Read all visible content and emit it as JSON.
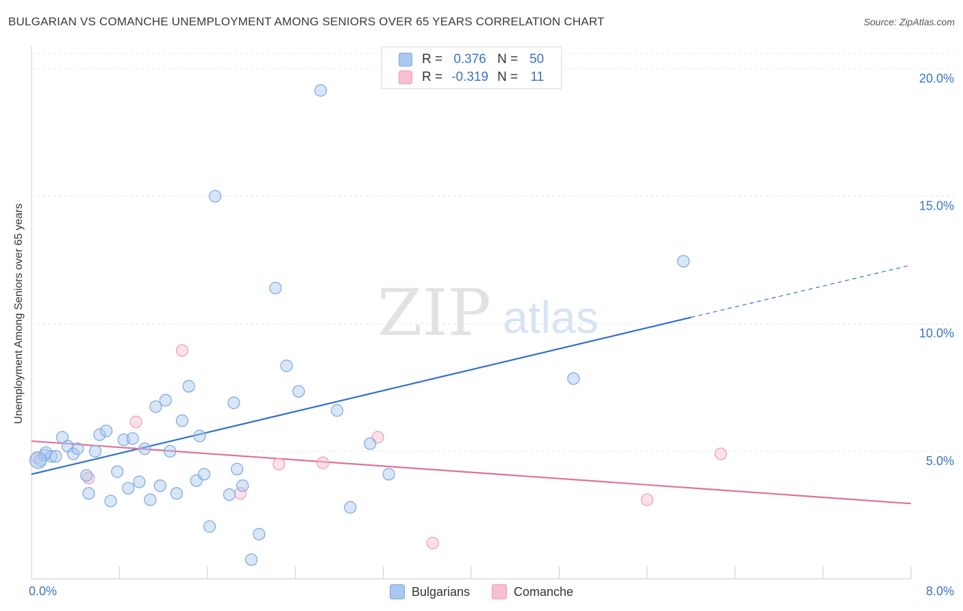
{
  "header": {
    "title": "BULGARIAN VS COMANCHE UNEMPLOYMENT AMONG SENIORS OVER 65 YEARS CORRELATION CHART",
    "source": "Source: ZipAtlas.com"
  },
  "watermark": {
    "zip": "ZIP",
    "atlas": "atlas"
  },
  "legend": {
    "rows": [
      {
        "r_label": "R =",
        "r_value": "0.376",
        "n_label": "N =",
        "n_value": "50",
        "color": "#a8c8f0",
        "border": "#7aa6e0"
      },
      {
        "r_label": "R =",
        "r_value": "-0.319",
        "n_label": "N =",
        "n_value": "11",
        "color": "#f7bfd0",
        "border": "#ee9ab5"
      }
    ]
  },
  "bottom_legend": {
    "items": [
      {
        "label": "Bulgarians",
        "color": "#a8c8f0",
        "border": "#7aa6e0"
      },
      {
        "label": "Comanche",
        "color": "#f7bfd0",
        "border": "#ee9ab5"
      }
    ]
  },
  "chart_data": {
    "type": "scatter",
    "title": "BULGARIAN VS COMANCHE UNEMPLOYMENT AMONG SENIORS OVER 65 YEARS CORRELATION CHART",
    "xlabel": "",
    "ylabel": "Unemployment Among Seniors over 65 years",
    "xlim": [
      0,
      8
    ],
    "ylim": [
      0,
      20.6
    ],
    "x_tick_labels": [
      "0.0%",
      "8.0%"
    ],
    "y_ticks": [
      5,
      10,
      15,
      20
    ],
    "y_tick_labels": [
      "5.0%",
      "10.0%",
      "15.0%",
      "20.0%"
    ],
    "grid": true,
    "series": [
      {
        "name": "Bulgarians",
        "color": "#7aa6e0",
        "fill": "rgba(168,200,240,0.45)",
        "points": [
          [
            0.08,
            4.65
          ],
          [
            0.12,
            4.85
          ],
          [
            0.18,
            4.8
          ],
          [
            0.22,
            4.8
          ],
          [
            0.28,
            5.55
          ],
          [
            0.33,
            5.2
          ],
          [
            0.38,
            4.9
          ],
          [
            0.42,
            5.1
          ],
          [
            0.5,
            4.05
          ],
          [
            0.52,
            3.35
          ],
          [
            0.58,
            5.0
          ],
          [
            0.62,
            5.65
          ],
          [
            0.68,
            5.8
          ],
          [
            0.72,
            3.05
          ],
          [
            0.78,
            4.2
          ],
          [
            0.84,
            5.45
          ],
          [
            0.88,
            3.55
          ],
          [
            0.92,
            5.5
          ],
          [
            0.98,
            3.8
          ],
          [
            1.03,
            5.1
          ],
          [
            1.08,
            3.1
          ],
          [
            1.13,
            6.75
          ],
          [
            1.17,
            3.65
          ],
          [
            1.22,
            7.0
          ],
          [
            1.26,
            5.0
          ],
          [
            1.32,
            3.35
          ],
          [
            1.37,
            6.2
          ],
          [
            1.43,
            7.55
          ],
          [
            1.5,
            3.85
          ],
          [
            1.53,
            5.6
          ],
          [
            1.57,
            4.1
          ],
          [
            1.62,
            2.05
          ],
          [
            1.67,
            15.0
          ],
          [
            1.8,
            3.3
          ],
          [
            1.84,
            6.9
          ],
          [
            1.87,
            4.3
          ],
          [
            1.92,
            3.65
          ],
          [
            2.0,
            0.75
          ],
          [
            2.07,
            1.75
          ],
          [
            2.22,
            11.4
          ],
          [
            2.32,
            8.35
          ],
          [
            2.43,
            7.35
          ],
          [
            2.63,
            19.15
          ],
          [
            2.78,
            6.6
          ],
          [
            2.9,
            2.8
          ],
          [
            3.08,
            5.3
          ],
          [
            3.25,
            4.1
          ],
          [
            4.93,
            7.85
          ],
          [
            5.93,
            12.45
          ],
          [
            0.13,
            4.95
          ]
        ],
        "trend": {
          "x0": 0,
          "y0": 4.1,
          "x1": 6.0,
          "y1": 10.25,
          "dash_to_x": 8.0,
          "dash_to_y": 12.3
        }
      },
      {
        "name": "Comanche",
        "color": "#ee9ab5",
        "fill": "rgba(247,191,208,0.45)",
        "points": [
          [
            0.05,
            4.75
          ],
          [
            0.52,
            3.95
          ],
          [
            0.95,
            6.15
          ],
          [
            1.37,
            8.95
          ],
          [
            1.9,
            3.35
          ],
          [
            2.25,
            4.5
          ],
          [
            2.65,
            4.55
          ],
          [
            3.15,
            5.55
          ],
          [
            3.65,
            1.4
          ],
          [
            5.6,
            3.1
          ],
          [
            6.27,
            4.9
          ]
        ],
        "trend": {
          "x0": 0,
          "y0": 5.4,
          "x1": 8.0,
          "y1": 2.95
        }
      }
    ]
  }
}
